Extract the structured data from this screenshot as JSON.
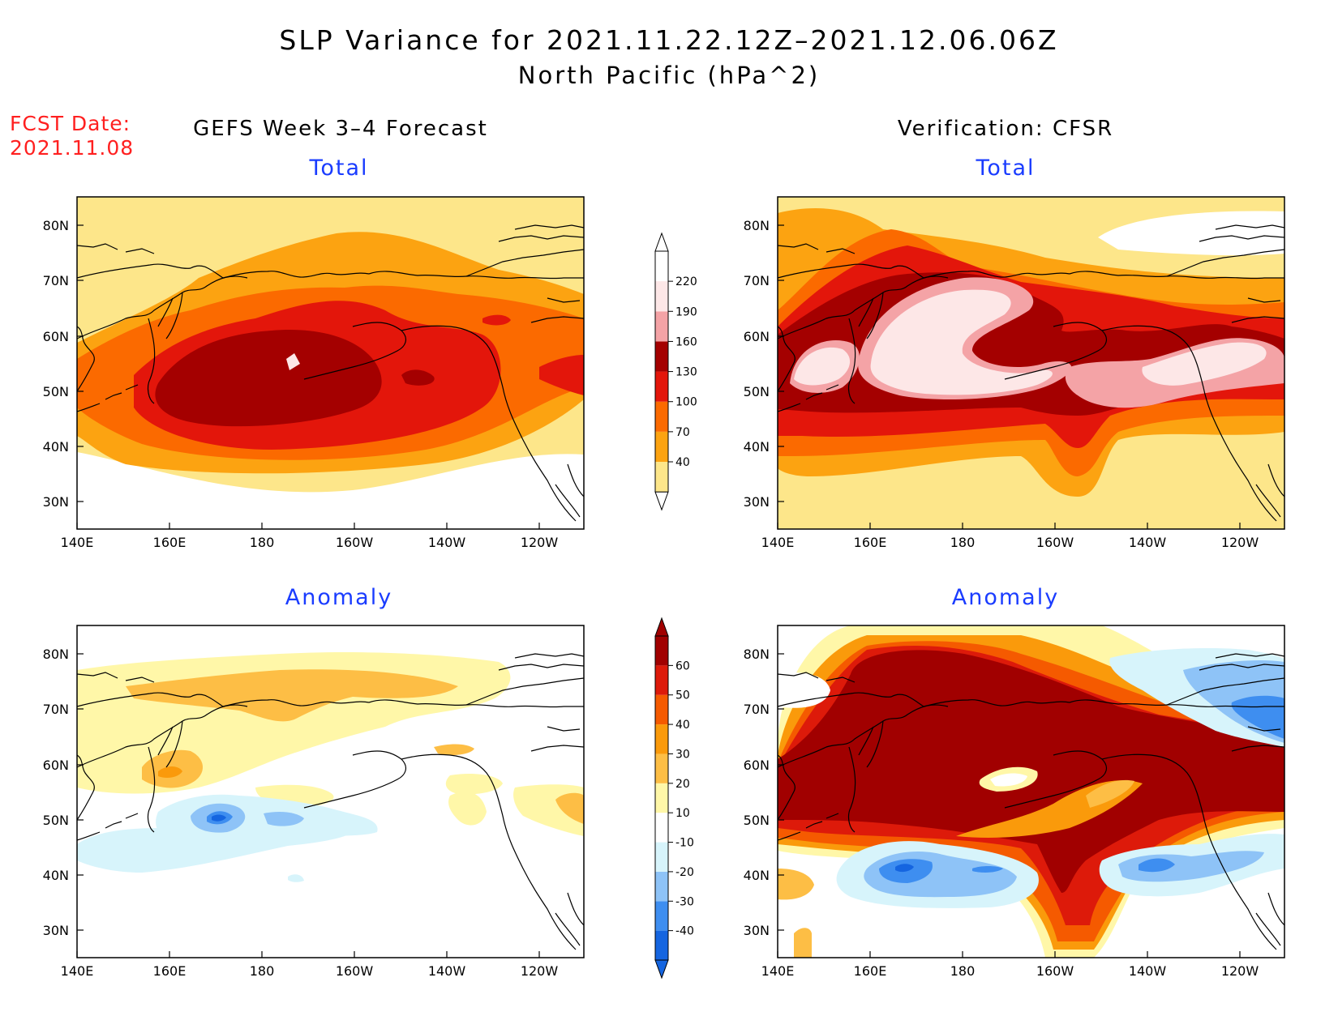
{
  "title": "SLP Variance for 2021.11.22.12Z–2021.12.06.06Z",
  "subtitle": "North Pacific (hPa^2)",
  "fcst_label": "FCST Date:",
  "fcst_date": "2021.11.08",
  "left_column_title": "GEFS Week 3–4 Forecast",
  "right_column_title": "Verification: CFSR",
  "panels": {
    "forecast_total": {
      "label": "Total"
    },
    "verif_total": {
      "label": "Total"
    },
    "forecast_anomaly": {
      "label": "Anomaly"
    },
    "verif_anomaly": {
      "label": "Anomaly"
    }
  },
  "map_axes": {
    "x_ticks": [
      "140E",
      "160E",
      "180",
      "160W",
      "140W",
      "120W"
    ],
    "y_ticks": [
      "80N",
      "70N",
      "60N",
      "50N",
      "40N",
      "30N"
    ]
  },
  "total_colorbar": {
    "labels": [
      "40",
      "70",
      "100",
      "130",
      "160",
      "190",
      "220"
    ],
    "colors": [
      "#fde68a",
      "#fca311",
      "#fb6a00",
      "#e3160b",
      "#a40000",
      "#f4a3a6",
      "#fde7e7"
    ]
  },
  "anomaly_colorbar": {
    "labels": [
      "-40",
      "-30",
      "-20",
      "-10",
      "10",
      "20",
      "30",
      "40",
      "50",
      "60"
    ],
    "colors": [
      "#1565e0",
      "#3e8ef0",
      "#8ec3f7",
      "#d7f4fb",
      "#ffffff",
      "#fff7a8",
      "#fdbe45",
      "#fa9a0b",
      "#f55a00",
      "#dd1a0a",
      "#a10000"
    ]
  }
}
